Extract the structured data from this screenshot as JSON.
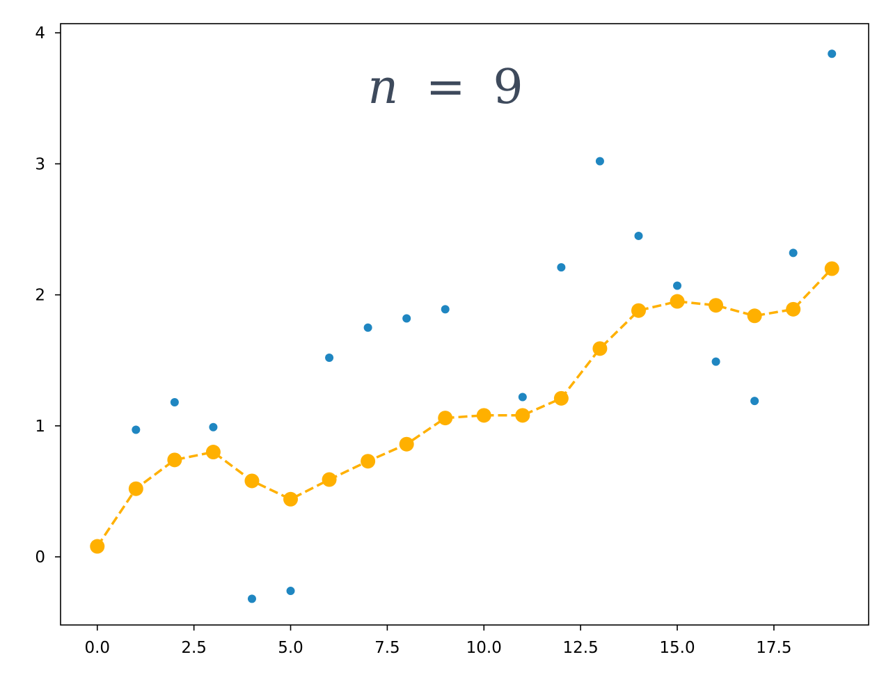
{
  "chart_data": {
    "type": "scatter",
    "title": "",
    "xlabel": "",
    "ylabel": "",
    "xlim": [
      -0.95,
      19.95
    ],
    "ylim": [
      -0.52,
      4.07
    ],
    "grid": false,
    "annotation": {
      "variable": "n",
      "operator": "=",
      "value": "9"
    },
    "x_ticks": [
      {
        "value": 0,
        "label": "0.0"
      },
      {
        "value": 2.5,
        "label": "2.5"
      },
      {
        "value": 5,
        "label": "5.0"
      },
      {
        "value": 7.5,
        "label": "7.5"
      },
      {
        "value": 10,
        "label": "10.0"
      },
      {
        "value": 12.5,
        "label": "12.5"
      },
      {
        "value": 15,
        "label": "15.0"
      },
      {
        "value": 17.5,
        "label": "17.5"
      }
    ],
    "y_ticks": [
      {
        "value": 0,
        "label": "0"
      },
      {
        "value": 1,
        "label": "1"
      },
      {
        "value": 2,
        "label": "2"
      },
      {
        "value": 3,
        "label": "3"
      },
      {
        "value": 4,
        "label": "4"
      }
    ],
    "series": [
      {
        "kind": "scatter",
        "color": "#1f86c1",
        "x": [
          1,
          2,
          3,
          4,
          5,
          6,
          7,
          8,
          9,
          11,
          12,
          13,
          14,
          15,
          16,
          17,
          18,
          19
        ],
        "y": [
          0.97,
          1.18,
          0.99,
          -0.32,
          -0.26,
          1.52,
          1.75,
          1.82,
          1.89,
          1.22,
          2.21,
          3.02,
          2.45,
          2.07,
          1.49,
          1.19,
          2.32,
          3.84
        ]
      },
      {
        "kind": "line-markers",
        "color": "#ffb000",
        "linestyle": "dashed",
        "x": [
          0,
          1,
          2,
          3,
          4,
          5,
          6,
          7,
          8,
          9,
          10,
          11,
          12,
          13,
          14,
          15,
          16,
          17,
          18,
          19
        ],
        "y": [
          0.08,
          0.52,
          0.74,
          0.8,
          0.58,
          0.44,
          0.59,
          0.73,
          0.86,
          1.06,
          1.08,
          1.08,
          1.21,
          1.59,
          1.88,
          1.95,
          1.92,
          1.84,
          1.89,
          2.2
        ]
      }
    ]
  }
}
